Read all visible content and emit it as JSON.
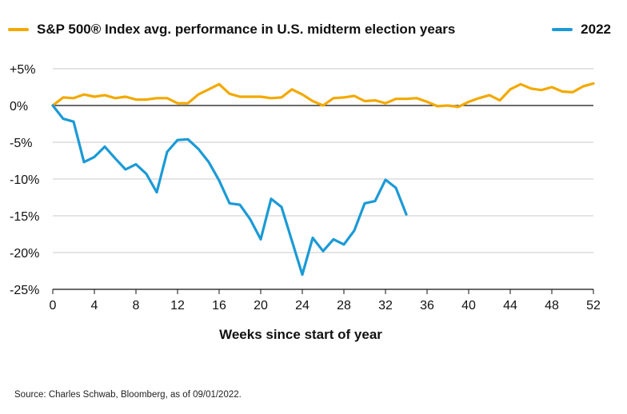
{
  "colors": {
    "avg": "#F2A900",
    "y2022": "#1B9AD6",
    "grid": "#C8C8C8",
    "zero": "#111111"
  },
  "chart_data": {
    "type": "line",
    "title": "",
    "xlabel": "Weeks since start of year",
    "ylabel": "",
    "xlim": [
      0,
      52
    ],
    "ylim": [
      -25,
      5
    ],
    "xticks": [
      0,
      4,
      8,
      12,
      16,
      20,
      24,
      28,
      32,
      36,
      40,
      44,
      48,
      52
    ],
    "xtick_labels": [
      "0",
      "4",
      "8",
      "12",
      "16",
      "20",
      "24",
      "28",
      "32",
      "36",
      "40",
      "44",
      "48",
      "52"
    ],
    "yticks": [
      5,
      0,
      -5,
      -10,
      -15,
      -20,
      -25
    ],
    "ytick_labels": [
      "+5%",
      "0%",
      "-5%",
      "-10%",
      "-15%",
      "-20%",
      "-25%"
    ],
    "grid": true,
    "legend_position": "top",
    "series": [
      {
        "name": "S&P 500® Index avg. performance in U.S. midterm election years",
        "color": "#F2A900",
        "x": [
          0,
          1,
          2,
          3,
          4,
          5,
          6,
          7,
          8,
          9,
          10,
          11,
          12,
          13,
          14,
          15,
          16,
          17,
          18,
          19,
          20,
          21,
          22,
          23,
          24,
          25,
          26,
          27,
          28,
          29,
          30,
          31,
          32,
          33,
          34,
          35,
          36,
          37,
          38,
          39,
          40,
          41,
          42,
          43,
          44,
          45,
          46,
          47,
          48,
          49,
          50,
          51,
          52
        ],
        "y": [
          0,
          1.1,
          1.0,
          1.5,
          1.2,
          1.4,
          1.0,
          1.2,
          0.8,
          0.8,
          1.0,
          1.0,
          0.3,
          0.3,
          1.5,
          2.2,
          2.9,
          1.6,
          1.2,
          1.2,
          1.2,
          1.0,
          1.1,
          2.2,
          1.5,
          0.6,
          0.0,
          1.0,
          1.1,
          1.3,
          0.6,
          0.7,
          0.3,
          0.9,
          0.9,
          1.0,
          0.5,
          -0.1,
          0.0,
          -0.2,
          0.5,
          1.0,
          1.4,
          0.7,
          2.2,
          2.9,
          2.3,
          2.1,
          2.5,
          1.9,
          1.8,
          2.6,
          3.0
        ]
      },
      {
        "name": "2022",
        "color": "#1B9AD6",
        "x": [
          0,
          1,
          2,
          3,
          4,
          5,
          6,
          7,
          8,
          9,
          10,
          11,
          12,
          13,
          14,
          15,
          16,
          17,
          18,
          19,
          20,
          21,
          22,
          23,
          24,
          25,
          26,
          27,
          28,
          29,
          30,
          31,
          32,
          33,
          34
        ],
        "y": [
          0,
          -1.8,
          -2.2,
          -7.7,
          -7.0,
          -5.6,
          -7.2,
          -8.7,
          -8.0,
          -9.3,
          -11.8,
          -6.3,
          -4.7,
          -4.6,
          -5.9,
          -7.7,
          -10.2,
          -13.3,
          -13.5,
          -15.5,
          -18.2,
          -12.7,
          -13.8,
          -18.4,
          -23.0,
          -18.0,
          -19.8,
          -18.2,
          -18.9,
          -17.0,
          -13.3,
          -13.0,
          -10.1,
          -11.2,
          -14.8
        ]
      }
    ]
  },
  "source": "Source: Charles Schwab, Bloomberg, as of 09/01/2022."
}
